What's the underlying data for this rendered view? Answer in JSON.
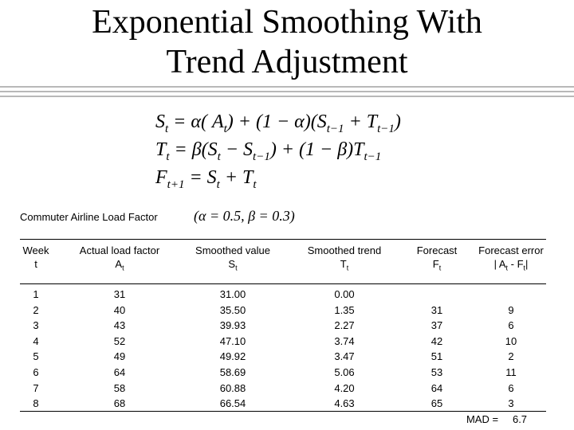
{
  "title": [
    "Exponential Smoothing With",
    "Trend Adjustment"
  ],
  "formulas": [
    [
      "S",
      "t",
      " = α( A",
      "t",
      ") + (1 − α)(S",
      "t−1",
      " + T",
      "t−1",
      ")"
    ],
    [
      "T",
      "t",
      " = β(S",
      "t",
      " − S",
      "t−1",
      ") + (1 − β)T",
      "t−1"
    ],
    [
      "F",
      "t+1",
      " = S",
      "t",
      " + T",
      "t"
    ]
  ],
  "table": {
    "caption": "Commuter Airline Load Factor",
    "parameters": "(α = 0.5, β = 0.3)",
    "header": [
      {
        "line1": "Week",
        "line2": [
          "t"
        ]
      },
      {
        "line1": "Actual load factor",
        "line2": [
          "A",
          "t"
        ]
      },
      {
        "line1": "Smoothed value",
        "line2": [
          "S",
          "t"
        ]
      },
      {
        "line1": "Smoothed trend",
        "line2": [
          "T",
          "t"
        ]
      },
      {
        "line1": "Forecast",
        "line2": [
          "F",
          "t"
        ]
      },
      {
        "line1": "Forecast error",
        "line2": [
          "| A",
          "t",
          " - F",
          "t",
          "|"
        ]
      }
    ],
    "rows": [
      [
        "1",
        "31",
        "31.00",
        "0.00",
        null,
        null
      ],
      [
        "2",
        "40",
        "35.50",
        "1.35",
        "31",
        "9"
      ],
      [
        "3",
        "43",
        "39.93",
        "2.27",
        "37",
        "6"
      ],
      [
        "4",
        "52",
        "47.10",
        "3.74",
        "42",
        "10"
      ],
      [
        "5",
        "49",
        "49.92",
        "3.47",
        "51",
        "2"
      ],
      [
        "6",
        "64",
        "58.69",
        "5.06",
        "53",
        "11"
      ],
      [
        "7",
        "58",
        "60.88",
        "4.20",
        "64",
        "6"
      ],
      [
        "8",
        "68",
        "66.54",
        "4.63",
        "65",
        "3"
      ]
    ],
    "mad_label": "MAD =",
    "mad_value": "6.7"
  }
}
